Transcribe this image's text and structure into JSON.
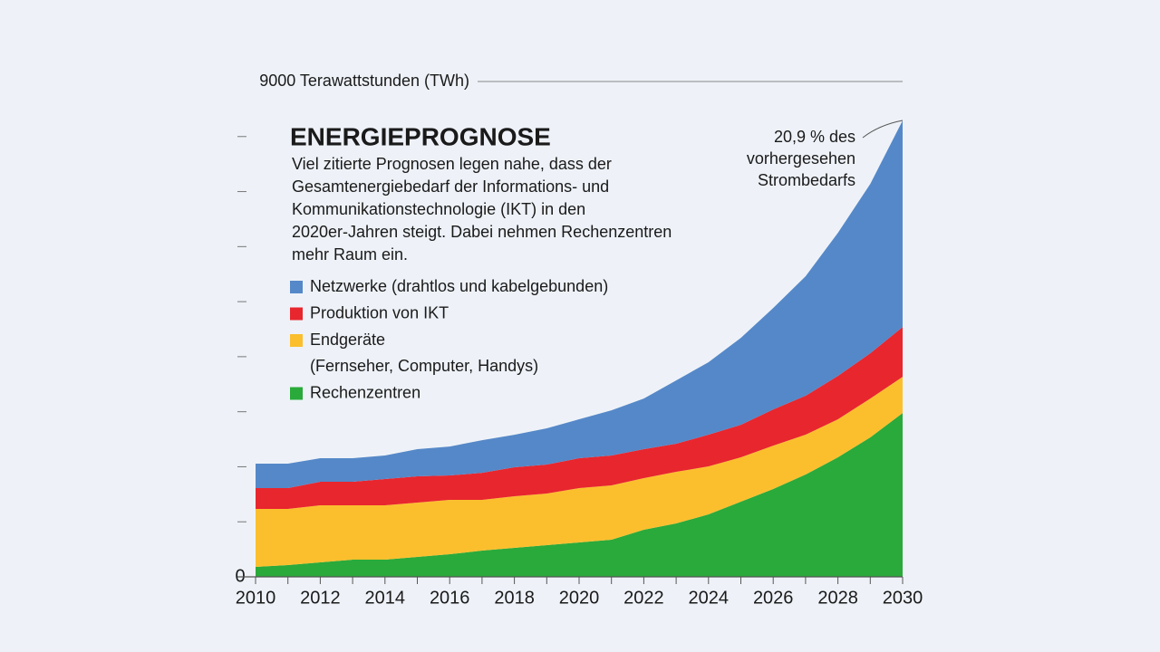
{
  "chart_data": {
    "type": "stacked-area",
    "title": "ENERGIEPROGNOSE",
    "description": [
      "Viel zitierte Prognosen legen nahe, dass der",
      "Gesamtenergiebedarf der Informations- und",
      "Kommunikationstechnologie (IKT) in den",
      "2020er-Jahren steigt. Dabei nehmen Rechenzentren",
      "mehr Raum ein."
    ],
    "annotation": [
      "20,9 % des",
      "vorhergesehen",
      "Strombedarfs"
    ],
    "x": [
      2010,
      2011,
      2012,
      2013,
      2014,
      2015,
      2016,
      2017,
      2018,
      2019,
      2020,
      2021,
      2022,
      2023,
      2024,
      2025,
      2026,
      2027,
      2028,
      2029,
      2030
    ],
    "series": [
      {
        "name": "Netzwerke (drahtlos und kabelgebunden)",
        "color": "#5588c8",
        "values": [
          444,
          444,
          428,
          428,
          428,
          493,
          526,
          592,
          592,
          658,
          707,
          822,
          921,
          1151,
          1316,
          1579,
          1842,
          2171,
          2599,
          3076,
          3750
        ]
      },
      {
        "name": "Produktion von IKT",
        "color": "#e8262e",
        "values": [
          378,
          378,
          428,
          428,
          477,
          477,
          444,
          493,
          526,
          526,
          543,
          543,
          526,
          510,
          576,
          592,
          658,
          707,
          789,
          822,
          905
        ]
      },
      {
        "name": "Endgeräte",
        "subname": "(Fernseher, Computer, Handys)",
        "color": "#fbbf2e",
        "values": [
          1053,
          1020,
          1036,
          987,
          987,
          987,
          987,
          921,
          938,
          938,
          987,
          987,
          938,
          938,
          872,
          806,
          789,
          724,
          691,
          707,
          658
        ]
      },
      {
        "name": "Rechenzentren",
        "color": "#2aaa3a",
        "values": [
          181,
          214,
          263,
          312,
          312,
          362,
          411,
          477,
          526,
          576,
          625,
          674,
          855,
          970,
          1135,
          1365,
          1595,
          1859,
          2171,
          2533,
          2977
        ]
      }
    ],
    "xlim": [
      2010,
      2030
    ],
    "xticks": [
      2010,
      2012,
      2014,
      2016,
      2018,
      2020,
      2022,
      2024,
      2026,
      2028,
      2030
    ],
    "xminorticks": [
      2011,
      2013,
      2015,
      2017,
      2019,
      2021,
      2023,
      2025,
      2027,
      2029
    ],
    "ylim": [
      0,
      9000
    ],
    "yticks": [
      0,
      {
        "value": 9000,
        "label": "9000 Terawattstunden (TWh)"
      }
    ],
    "yminorticks": [
      1000,
      2000,
      3000,
      4000,
      5000,
      6000,
      7000,
      8000
    ]
  }
}
